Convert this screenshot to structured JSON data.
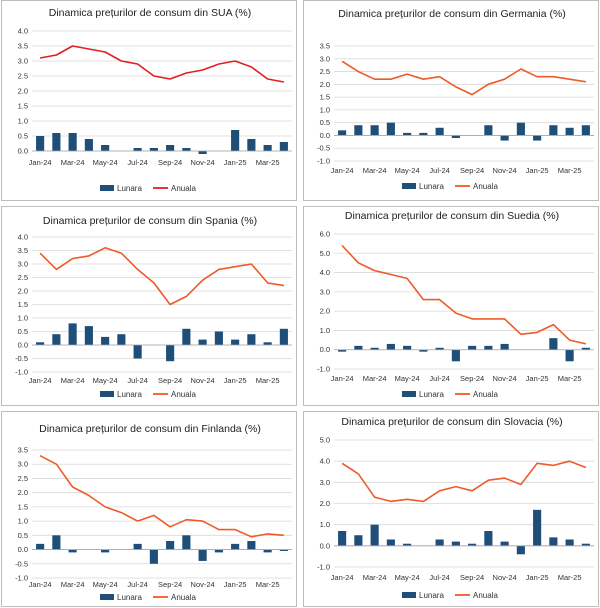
{
  "colors": {
    "bar": "#1f4e79",
    "line_sua": "#e02020",
    "line_other": "#f05a28",
    "grid": "#d9d9d9",
    "axis": "#a6a6a6"
  },
  "chart_data": [
    {
      "id": "sua",
      "type": "bar+line",
      "title": "Dinamica prețurilor de consum din SUA (%)",
      "categories": [
        "Jan-24",
        "Feb-24",
        "Mar-24",
        "Apr-24",
        "May-24",
        "Jun-24",
        "Jul-24",
        "Aug-24",
        "Sep-24",
        "Oct-24",
        "Nov-24",
        "Dec-24",
        "Jan-25",
        "Feb-25",
        "Mar-25",
        "Apr-25"
      ],
      "tick_labels": [
        "Jan-24",
        "Mar-24",
        "May-24",
        "Jul-24",
        "Sep-24",
        "Nov-24",
        "Jan-25",
        "Mar-25"
      ],
      "yticks": [
        "0.0",
        "0.5",
        "1.0",
        "1.5",
        "2.0",
        "2.5",
        "3.0",
        "3.5",
        "4.0"
      ],
      "ylim": [
        0,
        4
      ],
      "series": [
        {
          "name": "Lunara",
          "kind": "bar",
          "values": [
            0.5,
            0.6,
            0.6,
            0.4,
            0.2,
            0.0,
            0.1,
            0.1,
            0.2,
            0.1,
            -0.1,
            0.0,
            0.7,
            0.4,
            0.2,
            0.3
          ]
        },
        {
          "name": "Anuala",
          "kind": "line",
          "values": [
            3.1,
            3.2,
            3.5,
            3.4,
            3.3,
            3.0,
            2.9,
            2.5,
            2.4,
            2.6,
            2.7,
            2.9,
            3.0,
            2.8,
            2.4,
            2.3
          ]
        }
      ]
    },
    {
      "id": "germania",
      "type": "bar+line",
      "title": "Dinamica prețurilor de consum din Germania (%)",
      "categories": [
        "Jan-24",
        "Feb-24",
        "Mar-24",
        "Apr-24",
        "May-24",
        "Jun-24",
        "Jul-24",
        "Aug-24",
        "Sep-24",
        "Oct-24",
        "Nov-24",
        "Dec-24",
        "Jan-25",
        "Feb-25",
        "Mar-25",
        "Apr-25"
      ],
      "tick_labels": [
        "Jan-24",
        "Mar-24",
        "May-24",
        "Jul-24",
        "Sep-24",
        "Nov-24",
        "Jan-25",
        "Mar-25"
      ],
      "yticks": [
        "-1.0",
        "-0.5",
        "0.0",
        "0.5",
        "1.0",
        "1.5",
        "2.0",
        "2.5",
        "3.0",
        "3.5"
      ],
      "ylim": [
        -1,
        3.5
      ],
      "series": [
        {
          "name": "Lunara",
          "kind": "bar",
          "values": [
            0.2,
            0.4,
            0.4,
            0.5,
            0.1,
            0.1,
            0.3,
            -0.1,
            0.0,
            0.4,
            -0.2,
            0.5,
            -0.2,
            0.4,
            0.3,
            0.4
          ]
        },
        {
          "name": "Anuala",
          "kind": "line",
          "values": [
            2.9,
            2.5,
            2.2,
            2.2,
            2.4,
            2.2,
            2.3,
            1.9,
            1.6,
            2.0,
            2.2,
            2.6,
            2.3,
            2.3,
            2.2,
            2.1
          ]
        }
      ]
    },
    {
      "id": "spania",
      "type": "bar+line",
      "title": "Dinamica prețurilor de consum din Spania (%)",
      "categories": [
        "Jan-24",
        "Feb-24",
        "Mar-24",
        "Apr-24",
        "May-24",
        "Jun-24",
        "Jul-24",
        "Aug-24",
        "Sep-24",
        "Oct-24",
        "Nov-24",
        "Dec-24",
        "Jan-25",
        "Feb-25",
        "Mar-25",
        "Apr-25"
      ],
      "tick_labels": [
        "Jan-24",
        "Mar-24",
        "May-24",
        "Jul-24",
        "Sep-24",
        "Nov-24",
        "Jan-25",
        "Mar-25"
      ],
      "yticks": [
        "-1.0",
        "-0.5",
        "0.0",
        "0.5",
        "1.0",
        "1.5",
        "2.0",
        "2.5",
        "3.0",
        "3.5",
        "4.0"
      ],
      "ylim": [
        -1,
        4
      ],
      "series": [
        {
          "name": "Lunara",
          "kind": "bar",
          "values": [
            0.1,
            0.4,
            0.8,
            0.7,
            0.3,
            0.4,
            -0.5,
            0.0,
            -0.6,
            0.6,
            0.2,
            0.5,
            0.2,
            0.4,
            0.1,
            0.6
          ]
        },
        {
          "name": "Anuala",
          "kind": "line",
          "values": [
            3.4,
            2.8,
            3.2,
            3.3,
            3.6,
            3.4,
            2.8,
            2.3,
            1.5,
            1.8,
            2.4,
            2.8,
            2.9,
            3.0,
            2.3,
            2.2
          ]
        }
      ]
    },
    {
      "id": "suedia",
      "type": "bar+line",
      "title": "Dinamica prețurilor de consum din Suedia (%)",
      "categories": [
        "Jan-24",
        "Feb-24",
        "Mar-24",
        "Apr-24",
        "May-24",
        "Jun-24",
        "Jul-24",
        "Aug-24",
        "Sep-24",
        "Oct-24",
        "Nov-24",
        "Dec-24",
        "Jan-25",
        "Feb-25",
        "Mar-25",
        "Apr-25"
      ],
      "tick_labels": [
        "Jan-24",
        "Mar-24",
        "May-24",
        "Jul-24",
        "Sep-24",
        "Nov-24",
        "Jan-25",
        "Mar-25"
      ],
      "yticks": [
        "-1.0",
        "0.0",
        "1.0",
        "2.0",
        "3.0",
        "4.0",
        "5.0",
        "6.0"
      ],
      "ylim": [
        -1,
        6
      ],
      "series": [
        {
          "name": "Lunara",
          "kind": "bar",
          "values": [
            -0.1,
            0.2,
            0.1,
            0.3,
            0.2,
            -0.1,
            0.1,
            -0.6,
            0.2,
            0.2,
            0.3,
            0.0,
            0.0,
            0.6,
            -0.6,
            0.1
          ]
        },
        {
          "name": "Anuala",
          "kind": "line",
          "values": [
            5.4,
            4.5,
            4.1,
            3.9,
            3.7,
            2.6,
            2.6,
            1.9,
            1.6,
            1.6,
            1.6,
            0.8,
            0.9,
            1.3,
            0.5,
            0.3
          ]
        }
      ]
    },
    {
      "id": "finlanda",
      "type": "bar+line",
      "title": "Dinamica prețurilor de consum din Finlanda (%)",
      "categories": [
        "Jan-24",
        "Feb-24",
        "Mar-24",
        "Apr-24",
        "May-24",
        "Jun-24",
        "Jul-24",
        "Aug-24",
        "Sep-24",
        "Oct-24",
        "Nov-24",
        "Dec-24",
        "Jan-25",
        "Feb-25",
        "Mar-25",
        "Apr-25"
      ],
      "tick_labels": [
        "Jan-24",
        "Mar-24",
        "May-24",
        "Jul-24",
        "Sep-24",
        "Nov-24",
        "Jan-25",
        "Mar-25"
      ],
      "yticks": [
        "-1.0",
        "-0.5",
        "0.0",
        "0.5",
        "1.0",
        "1.5",
        "2.0",
        "2.5",
        "3.0",
        "3.5"
      ],
      "ylim": [
        -1,
        3.5
      ],
      "series": [
        {
          "name": "Lunara",
          "kind": "bar",
          "values": [
            0.2,
            0.5,
            -0.1,
            0.0,
            -0.1,
            0.0,
            0.2,
            -0.5,
            0.3,
            0.5,
            -0.4,
            -0.1,
            0.2,
            0.3,
            -0.1,
            -0.05
          ]
        },
        {
          "name": "Anuala",
          "kind": "line",
          "values": [
            3.3,
            3.0,
            2.2,
            1.9,
            1.5,
            1.3,
            1.0,
            1.2,
            0.8,
            1.05,
            1.0,
            0.7,
            0.7,
            0.45,
            0.55,
            0.5
          ]
        }
      ]
    },
    {
      "id": "slovacia",
      "type": "bar+line",
      "title": "Dinamica prețurilor de consum din Slovacia (%)",
      "categories": [
        "Jan-24",
        "Feb-24",
        "Mar-24",
        "Apr-24",
        "May-24",
        "Jun-24",
        "Jul-24",
        "Aug-24",
        "Sep-24",
        "Oct-24",
        "Nov-24",
        "Dec-24",
        "Jan-25",
        "Feb-25",
        "Mar-25",
        "Apr-25"
      ],
      "tick_labels": [
        "Jan-24",
        "Mar-24",
        "May-24",
        "Jul-24",
        "Sep-24",
        "Nov-24",
        "Jan-25",
        "Mar-25"
      ],
      "yticks": [
        "-1.0",
        "0.0",
        "1.0",
        "2.0",
        "3.0",
        "4.0",
        "5.0"
      ],
      "ylim": [
        -1,
        5
      ],
      "series": [
        {
          "name": "Lunara",
          "kind": "bar",
          "values": [
            0.7,
            0.5,
            1.0,
            0.3,
            0.1,
            0.0,
            0.3,
            0.2,
            0.1,
            0.7,
            0.2,
            -0.4,
            1.7,
            0.4,
            0.3,
            0.1
          ]
        },
        {
          "name": "Anuala",
          "kind": "line",
          "values": [
            3.9,
            3.4,
            2.3,
            2.1,
            2.2,
            2.1,
            2.6,
            2.8,
            2.6,
            3.1,
            3.2,
            2.9,
            3.9,
            3.8,
            4.0,
            3.7
          ]
        }
      ]
    }
  ]
}
